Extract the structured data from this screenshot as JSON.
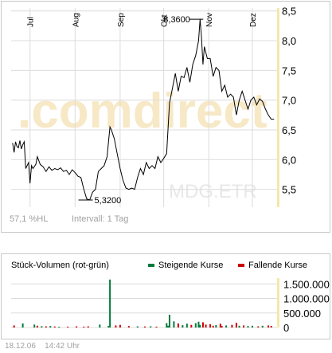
{
  "chart_data": [
    {
      "type": "line",
      "months": [
        {
          "label": "Jul",
          "x": "2006-07-01"
        },
        {
          "label": "Aug",
          "x": "2006-08-01"
        },
        {
          "label": "Sep",
          "x": "2006-09-01"
        },
        {
          "label": "Okt",
          "x": "2006-10-01"
        },
        {
          "label": "Nov",
          "x": "2006-11-01"
        },
        {
          "label": "Dez",
          "x": "2006-12-01"
        }
      ],
      "y_ticks": [
        "8,5",
        "8,0",
        "7,5",
        "7,0",
        "6,5",
        "6,0",
        "5,5"
      ],
      "ylim": [
        5.2,
        8.55
      ],
      "xlim": [
        "2006-06-18",
        "2006-12-18"
      ],
      "grid": true,
      "series": [
        {
          "points": [
            [
              "2006-06-19",
              6.28
            ],
            [
              "2006-06-20",
              6.12
            ],
            [
              "2006-06-21",
              6.3
            ],
            [
              "2006-06-22",
              6.22
            ],
            [
              "2006-06-23",
              6.2
            ],
            [
              "2006-06-24",
              6.32
            ],
            [
              "2006-06-25",
              6.18
            ],
            [
              "2006-06-26",
              6.25
            ],
            [
              "2006-06-27",
              6.3
            ],
            [
              "2006-06-28",
              5.85
            ],
            [
              "2006-06-30",
              5.95
            ],
            [
              "2006-07-01",
              5.6
            ],
            [
              "2006-07-02",
              5.9
            ],
            [
              "2006-07-03",
              5.85
            ],
            [
              "2006-07-05",
              5.92
            ],
            [
              "2006-07-06",
              6.05
            ],
            [
              "2006-07-08",
              5.92
            ],
            [
              "2006-07-10",
              5.88
            ],
            [
              "2006-07-12",
              5.8
            ],
            [
              "2006-07-14",
              5.88
            ],
            [
              "2006-07-16",
              5.82
            ],
            [
              "2006-07-18",
              5.85
            ],
            [
              "2006-07-20",
              5.83
            ],
            [
              "2006-07-22",
              5.86
            ],
            [
              "2006-07-24",
              5.8
            ],
            [
              "2006-07-26",
              5.82
            ],
            [
              "2006-07-28",
              5.75
            ],
            [
              "2006-07-30",
              5.83
            ],
            [
              "2006-08-01",
              5.78
            ],
            [
              "2006-08-03",
              5.72
            ],
            [
              "2006-08-05",
              5.7
            ],
            [
              "2006-08-07",
              5.5
            ],
            [
              "2006-08-09",
              5.34
            ],
            [
              "2006-08-11",
              5.32
            ],
            [
              "2006-08-13",
              5.45
            ],
            [
              "2006-08-15",
              5.5
            ],
            [
              "2006-08-17",
              5.8
            ],
            [
              "2006-08-19",
              5.85
            ],
            [
              "2006-08-21",
              5.9
            ],
            [
              "2006-08-23",
              6.05
            ],
            [
              "2006-08-25",
              6.55
            ],
            [
              "2006-08-26",
              6.5
            ],
            [
              "2006-08-28",
              6.35
            ],
            [
              "2006-08-30",
              6.1
            ],
            [
              "2006-09-01",
              5.85
            ],
            [
              "2006-09-03",
              5.65
            ],
            [
              "2006-09-05",
              5.52
            ],
            [
              "2006-09-07",
              5.5
            ],
            [
              "2006-09-09",
              5.52
            ],
            [
              "2006-09-11",
              5.5
            ],
            [
              "2006-09-13",
              5.7
            ],
            [
              "2006-09-15",
              5.85
            ],
            [
              "2006-09-17",
              5.75
            ],
            [
              "2006-09-19",
              5.95
            ],
            [
              "2006-09-21",
              5.85
            ],
            [
              "2006-09-23",
              5.9
            ],
            [
              "2006-09-25",
              5.85
            ],
            [
              "2006-09-27",
              6.05
            ],
            [
              "2006-09-29",
              5.95
            ],
            [
              "2006-10-01",
              6.02
            ],
            [
              "2006-10-03",
              6.1
            ],
            [
              "2006-10-05",
              6.95
            ],
            [
              "2006-10-07",
              7.2
            ],
            [
              "2006-10-09",
              7.45
            ],
            [
              "2006-10-11",
              7.15
            ],
            [
              "2006-10-13",
              7.4
            ],
            [
              "2006-10-15",
              7.38
            ],
            [
              "2006-10-17",
              7.55
            ],
            [
              "2006-10-19",
              7.3
            ],
            [
              "2006-10-21",
              7.6
            ],
            [
              "2006-10-23",
              7.75
            ],
            [
              "2006-10-25",
              8.0
            ],
            [
              "2006-10-26",
              8.36
            ],
            [
              "2006-10-27",
              8.05
            ],
            [
              "2006-10-28",
              7.6
            ],
            [
              "2006-10-29",
              7.9
            ],
            [
              "2006-10-31",
              7.7
            ],
            [
              "2006-11-02",
              7.7
            ],
            [
              "2006-11-04",
              7.4
            ],
            [
              "2006-11-06",
              7.55
            ],
            [
              "2006-11-08",
              7.5
            ],
            [
              "2006-11-10",
              7.15
            ],
            [
              "2006-11-12",
              7.25
            ],
            [
              "2006-11-14",
              7.05
            ],
            [
              "2006-11-16",
              7.1
            ],
            [
              "2006-11-18",
              7.05
            ],
            [
              "2006-11-20",
              6.75
            ],
            [
              "2006-11-22",
              7.0
            ],
            [
              "2006-11-24",
              7.15
            ],
            [
              "2006-11-26",
              7.0
            ],
            [
              "2006-11-28",
              6.85
            ],
            [
              "2006-11-30",
              7.0
            ],
            [
              "2006-12-02",
              7.05
            ],
            [
              "2006-12-04",
              6.92
            ],
            [
              "2006-12-06",
              7.02
            ],
            [
              "2006-12-08",
              6.98
            ],
            [
              "2006-12-10",
              6.85
            ],
            [
              "2006-12-12",
              6.75
            ],
            [
              "2006-12-14",
              6.68
            ],
            [
              "2006-12-16",
              6.68
            ]
          ]
        }
      ],
      "annotations": [
        {
          "label": "8,3600",
          "x": "2006-10-26",
          "y": 8.36
        },
        {
          "label": "5,3200",
          "x": "2006-08-11",
          "y": 5.32
        }
      ],
      "watermark_main": ".comdirect",
      "watermark_ticker": "MDG.ETR",
      "stat_hl": "57,1 %HL",
      "stat_interval": "Intervall: 1 Tag"
    },
    {
      "type": "bar",
      "title": "Stück-Volumen (rot-grün)",
      "legend_up": "Steigende Kurse",
      "legend_down": "Fallende Kurse",
      "y_ticks": [
        "1.500.000",
        "1.000.000",
        "500.000",
        "0"
      ],
      "ylim": [
        0,
        1700000
      ],
      "xlim": [
        "2006-06-18",
        "2006-12-18"
      ],
      "legend_position": "top",
      "colors": {
        "up": "#007a3d",
        "down": "#cc0000"
      },
      "bars": [
        {
          "x": "2006-06-20",
          "volume": 70000,
          "direction": "down"
        },
        {
          "x": "2006-06-26",
          "volume": 140000,
          "direction": "up"
        },
        {
          "x": "2006-07-04",
          "volume": 100000,
          "direction": "up"
        },
        {
          "x": "2006-07-06",
          "volume": 60000,
          "direction": "down"
        },
        {
          "x": "2006-07-09",
          "volume": 45000,
          "direction": "up"
        },
        {
          "x": "2006-07-12",
          "volume": 40000,
          "direction": "down"
        },
        {
          "x": "2006-07-15",
          "volume": 50000,
          "direction": "up"
        },
        {
          "x": "2006-07-18",
          "volume": 35000,
          "direction": "down"
        },
        {
          "x": "2006-07-21",
          "volume": 25000,
          "direction": "up"
        },
        {
          "x": "2006-07-27",
          "volume": 30000,
          "direction": "down"
        },
        {
          "x": "2006-08-02",
          "volume": 40000,
          "direction": "down"
        },
        {
          "x": "2006-08-07",
          "volume": 30000,
          "direction": "down"
        },
        {
          "x": "2006-08-10",
          "volume": 40000,
          "direction": "down"
        },
        {
          "x": "2006-08-18",
          "volume": 100000,
          "direction": "up"
        },
        {
          "x": "2006-08-24",
          "volume": 55000,
          "direction": "up"
        },
        {
          "x": "2006-08-25",
          "volume": 1650000,
          "direction": "up"
        },
        {
          "x": "2006-08-29",
          "volume": 70000,
          "direction": "down"
        },
        {
          "x": "2006-09-01",
          "volume": 90000,
          "direction": "down"
        },
        {
          "x": "2006-09-07",
          "volume": 50000,
          "direction": "down"
        },
        {
          "x": "2006-09-13",
          "volume": 40000,
          "direction": "up"
        },
        {
          "x": "2006-09-18",
          "volume": 35000,
          "direction": "down"
        },
        {
          "x": "2006-09-22",
          "volume": 40000,
          "direction": "up"
        },
        {
          "x": "2006-09-26",
          "volume": 30000,
          "direction": "down"
        },
        {
          "x": "2006-10-03",
          "volume": 150000,
          "direction": "up"
        },
        {
          "x": "2006-10-04",
          "volume": 60000,
          "direction": "up"
        },
        {
          "x": "2006-10-05",
          "volume": 440000,
          "direction": "up"
        },
        {
          "x": "2006-10-08",
          "volume": 210000,
          "direction": "up"
        },
        {
          "x": "2006-10-11",
          "volume": 140000,
          "direction": "down"
        },
        {
          "x": "2006-10-14",
          "volume": 80000,
          "direction": "up"
        },
        {
          "x": "2006-10-17",
          "volume": 130000,
          "direction": "up"
        },
        {
          "x": "2006-10-20",
          "volume": 90000,
          "direction": "down"
        },
        {
          "x": "2006-10-23",
          "volume": 150000,
          "direction": "up"
        },
        {
          "x": "2006-10-25",
          "volume": 200000,
          "direction": "up"
        },
        {
          "x": "2006-10-26",
          "volume": 90000,
          "direction": "up"
        },
        {
          "x": "2006-10-28",
          "volume": 180000,
          "direction": "down"
        },
        {
          "x": "2006-10-30",
          "volume": 100000,
          "direction": "down"
        },
        {
          "x": "2006-11-02",
          "volume": 110000,
          "direction": "down"
        },
        {
          "x": "2006-11-04",
          "volume": 60000,
          "direction": "down"
        },
        {
          "x": "2006-11-06",
          "volume": 80000,
          "direction": "up"
        },
        {
          "x": "2006-11-09",
          "volume": 130000,
          "direction": "down"
        },
        {
          "x": "2006-11-10",
          "volume": 50000,
          "direction": "down"
        },
        {
          "x": "2006-11-13",
          "volume": 70000,
          "direction": "up"
        },
        {
          "x": "2006-11-17",
          "volume": 90000,
          "direction": "down"
        },
        {
          "x": "2006-11-20",
          "volume": 160000,
          "direction": "down"
        },
        {
          "x": "2006-11-22",
          "volume": 60000,
          "direction": "up"
        },
        {
          "x": "2006-11-25",
          "volume": 70000,
          "direction": "down"
        },
        {
          "x": "2006-11-28",
          "volume": 50000,
          "direction": "up"
        },
        {
          "x": "2006-12-01",
          "volume": 60000,
          "direction": "up"
        },
        {
          "x": "2006-12-05",
          "volume": 40000,
          "direction": "down"
        },
        {
          "x": "2006-12-08",
          "volume": 60000,
          "direction": "up"
        },
        {
          "x": "2006-12-12",
          "volume": 70000,
          "direction": "down"
        },
        {
          "x": "2006-12-14",
          "volume": 55000,
          "direction": "down"
        }
      ]
    }
  ],
  "footer": {
    "date": "18.12.06",
    "time": "14:42 Uhr"
  },
  "colors": {
    "price_line": "#000000",
    "grid": "#dcdcdc",
    "axis_bar": "#f6e7a9",
    "watermark_orange": "#f7e8c6",
    "watermark_gray": "#e8e8e8"
  }
}
